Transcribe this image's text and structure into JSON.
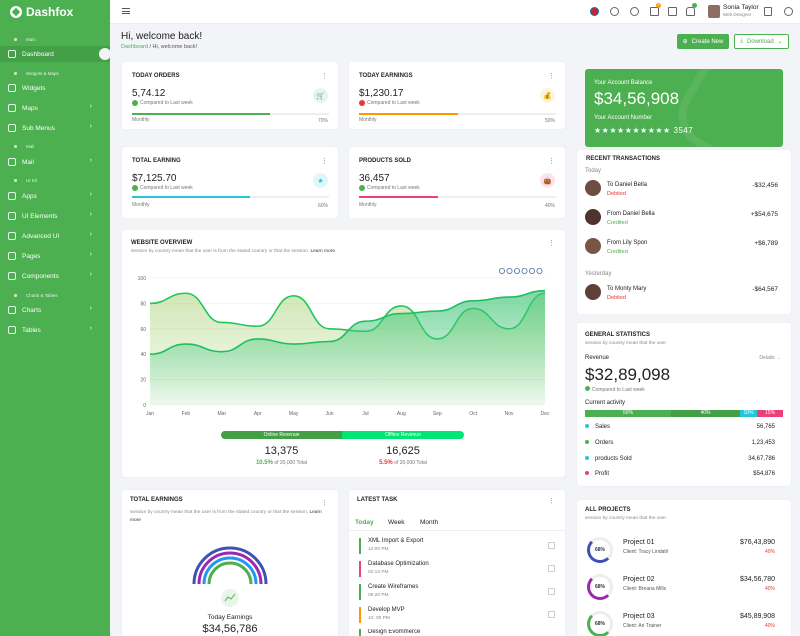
{
  "brand": "Dashfox",
  "sidebar": {
    "sections": [
      "Main",
      "Widgets & Maps",
      "Mail",
      "UI Kit",
      "Charts & Tables"
    ],
    "items": [
      "Dashboard",
      "Widgets",
      "Maps",
      "Sub Menus",
      "Mail",
      "Apps",
      "UI Elements",
      "Advanced UI",
      "Pages",
      "Components",
      "Charts",
      "Tables"
    ]
  },
  "topbar": {
    "user_name": "Sonia Taylor",
    "user_role": "Web Designer",
    "cart_badge": "3"
  },
  "header": {
    "title": "Hi, welcome back!",
    "crumb_home": "Dashboard",
    "crumb_current": "Hi, welcome back!",
    "create_label": "Create New",
    "download_label": "Download"
  },
  "stats": [
    {
      "title": "TODAY ORDERS",
      "value": "5,74.12",
      "compare": "Compared to Last week",
      "period": "Monthly",
      "percent": "70%",
      "fill": 0.7,
      "color": "#4caf50",
      "tint": "#e8f5e9",
      "dot": "#4caf50",
      "icon": "cart-icon",
      "glyph": "🛒"
    },
    {
      "title": "TODAY EARNINGS",
      "value": "$1,230.17",
      "compare": "Compared to Last week",
      "period": "Monthly",
      "percent": "50%",
      "fill": 0.5,
      "color": "#ff9800",
      "tint": "#fff3e0",
      "dot": "#e53935",
      "icon": "coin-icon",
      "glyph": "💰"
    },
    {
      "title": "TOTAL EARNING",
      "value": "$7,125.70",
      "compare": "Compared to Last week",
      "period": "Monthly",
      "percent": "60%",
      "fill": 0.6,
      "color": "#26c6da",
      "tint": "#e0f7fa",
      "dot": "#4caf50",
      "icon": "star-icon",
      "glyph": "★"
    },
    {
      "title": "PRODUCTS SOLD",
      "value": "36,457",
      "compare": "Compared to Last week",
      "period": "Monthly",
      "percent": "40%",
      "fill": 0.4,
      "color": "#ec407a",
      "tint": "#fce4ec",
      "dot": "#4caf50",
      "icon": "bag-icon",
      "glyph": "👜"
    }
  ],
  "overview": {
    "title": "WEBSITE OVERVIEW",
    "subtitle": "session by country mean that the user is from the stated country or that the session.",
    "learn_more": "Learn more",
    "online_label": "Online Revenue",
    "offline_label": "Offline Revenue",
    "online_value": "13,375",
    "online_pct": "10.5%",
    "online_of": "of 20,000 Total",
    "offline_value": "16,625",
    "offline_pct": "5.5%",
    "offline_of": "of 20,000 Total"
  },
  "chart_data": {
    "type": "area",
    "categories": [
      "Jan",
      "Feb",
      "Mar",
      "Apr",
      "May",
      "Jun",
      "Jul",
      "Aug",
      "Sep",
      "Oct",
      "Nov",
      "Dec"
    ],
    "series": [
      {
        "values": [
          80,
          88,
          65,
          62,
          86,
          60,
          58,
          78,
          52,
          76,
          60,
          88
        ]
      },
      {
        "values": [
          40,
          48,
          42,
          52,
          48,
          50,
          66,
          72,
          74,
          82,
          85,
          90
        ]
      }
    ],
    "yticks": [
      0,
      20,
      40,
      60,
      80,
      100
    ],
    "ylim": [
      0,
      100
    ],
    "grid": true
  },
  "balance": {
    "label": "Your Account Balance",
    "amount": "$34,56,908",
    "acc_label": "Your Account Number",
    "acc_number": "★★★★★★★★★★ 3547"
  },
  "transactions": {
    "title": "RECENT TRANSACTIONS",
    "today": "Today",
    "yesterday": "Yesterday",
    "items": [
      {
        "name": "To Daniel Bella",
        "status": "Debited",
        "amount": "-$32,456"
      },
      {
        "name": "From Daniel Bella",
        "status": "Credited",
        "amount": "+$54,675"
      },
      {
        "name": "From Lily Spon",
        "status": "Credited",
        "amount": "+$6,789"
      },
      {
        "name": "To Monty Mary",
        "status": "Debited",
        "amount": "-$64,567"
      }
    ]
  },
  "general": {
    "title": "GENERAL STATISTICS",
    "subtitle": "session by country mean that the user",
    "revenue_label": "Revenue",
    "details": "Details →",
    "revenue": "$32,89,098",
    "compare": "Compared to Last week",
    "activity": "Current activity",
    "segments": [
      {
        "label": "50%",
        "pct": 50,
        "color": "#4caf50"
      },
      {
        "label": "40%",
        "pct": 40,
        "color": "#43a047"
      },
      {
        "label": "10%",
        "pct": 10,
        "color": "#26c6da"
      },
      {
        "label": "15%",
        "pct": 15,
        "color": "#ec407a"
      }
    ],
    "rows": [
      {
        "label": "Sales",
        "value": "56,765",
        "color": "#26c6da"
      },
      {
        "label": "Orders",
        "value": "1,23,453",
        "color": "#4caf50"
      },
      {
        "label": "products Sold",
        "value": "34,67,786",
        "color": "#26c6da"
      },
      {
        "label": "Profit",
        "value": "$54,876",
        "color": "#ec407a"
      }
    ]
  },
  "earnings": {
    "title": "TOTAL EARNINGS",
    "subtitle": "session by country mean that the user is from the stated country or that the session.",
    "learn_more": "Learn more",
    "label": "Today Earnings",
    "value": "$34,56,786"
  },
  "tasks": {
    "title": "LATEST TASK",
    "tabs": [
      "Today",
      "Week",
      "Month"
    ],
    "items": [
      {
        "name": "XML Import & Export",
        "time": "12:00 PM",
        "color": "#4caf50"
      },
      {
        "name": "Database Optimization",
        "time": "02:13 PM",
        "color": "#ec407a"
      },
      {
        "name": "Create Wireframes",
        "time": "06:20 PM",
        "color": "#4caf50"
      },
      {
        "name": "Develop MVP",
        "time": "10: 00 PM",
        "color": "#ff9800"
      },
      {
        "name": "Design Evommerce",
        "time": "",
        "color": "#4caf50"
      }
    ]
  },
  "projects": {
    "title": "ALL PROJECTS",
    "subtitle": "session by country mean that the user",
    "items": [
      {
        "name": "Project 01",
        "client": "Client: Tracy Lindahl",
        "amount": "$76,43,890",
        "pct": "40%",
        "ring": "68%",
        "color": "#3f51b5"
      },
      {
        "name": "Project 02",
        "client": "Client: Breana Mills",
        "amount": "$34,56,780",
        "pct": "40%",
        "ring": "68%",
        "color": "#9c27b0"
      },
      {
        "name": "Project 03",
        "client": "Client: Ari Trainer",
        "amount": "$45,89,908",
        "pct": "40%",
        "ring": "68%",
        "color": "#4caf50"
      }
    ]
  }
}
